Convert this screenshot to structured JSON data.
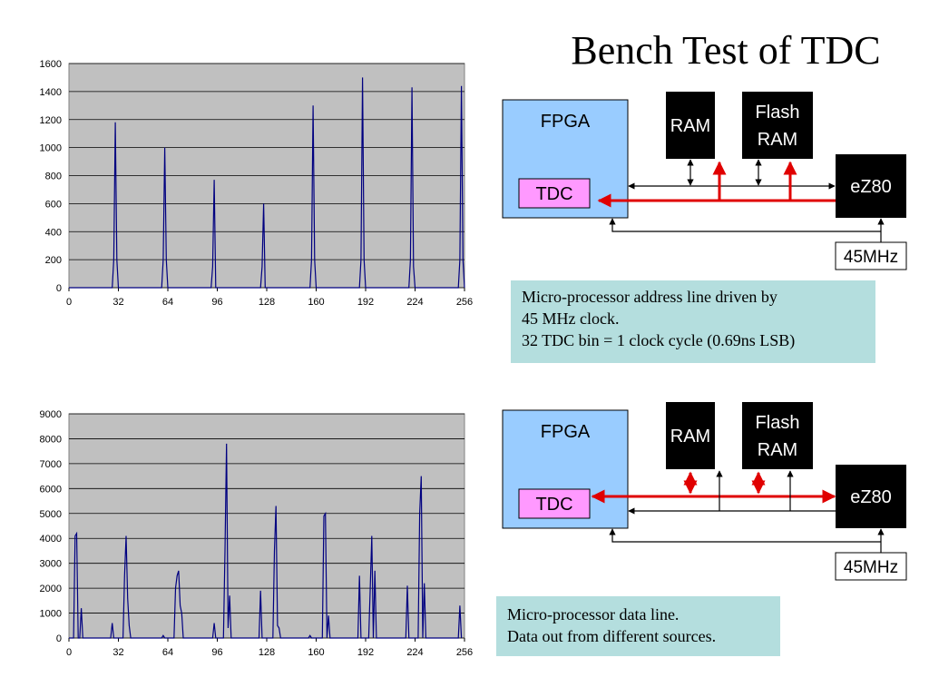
{
  "title": "Bench Test of TDC",
  "colors": {
    "plot_bg": "#c0c0c0",
    "line": "#000080",
    "fpga": "#99ccff",
    "tdc": "#ff99ff",
    "bus_red": "#e00000",
    "caption_bg": "#b4dede"
  },
  "chart_data": [
    {
      "type": "line",
      "xlim": [
        0,
        256
      ],
      "ylim": [
        0,
        1600
      ],
      "x_ticks": [
        "0",
        "32",
        "64",
        "96",
        "128",
        "160",
        "192",
        "224",
        "256"
      ],
      "y_ticks": [
        "0",
        "200",
        "400",
        "600",
        "800",
        "1000",
        "1200",
        "1400",
        "1600"
      ],
      "grid": true,
      "series": [
        {
          "points": [
            [
              0,
              0
            ],
            [
              28,
              0
            ],
            [
              29,
              200
            ],
            [
              30,
              1180
            ],
            [
              31,
              200
            ],
            [
              32,
              0
            ],
            [
              60,
              0
            ],
            [
              61,
              200
            ],
            [
              62,
              1000
            ],
            [
              63,
              200
            ],
            [
              64,
              0
            ],
            [
              92,
              0
            ],
            [
              93,
              150
            ],
            [
              94,
              770
            ],
            [
              95,
              0
            ],
            [
              124,
              0
            ],
            [
              125,
              150
            ],
            [
              126,
              600
            ],
            [
              127,
              0
            ],
            [
              156,
              0
            ],
            [
              157,
              200
            ],
            [
              158,
              1300
            ],
            [
              159,
              200
            ],
            [
              160,
              0
            ],
            [
              188,
              0
            ],
            [
              189,
              200
            ],
            [
              190,
              1500
            ],
            [
              191,
              200
            ],
            [
              192,
              0
            ],
            [
              220,
              0
            ],
            [
              221,
              200
            ],
            [
              222,
              1430
            ],
            [
              223,
              150
            ],
            [
              224,
              0
            ],
            [
              252,
              0
            ],
            [
              253,
              200
            ],
            [
              254,
              1440
            ],
            [
              255,
              200
            ],
            [
              256,
              0
            ]
          ]
        }
      ]
    },
    {
      "type": "line",
      "xlim": [
        0,
        256
      ],
      "ylim": [
        0,
        9000
      ],
      "x_ticks": [
        "0",
        "32",
        "64",
        "96",
        "128",
        "160",
        "192",
        "224",
        "256"
      ],
      "y_ticks": [
        "0",
        "1000",
        "2000",
        "3000",
        "4000",
        "5000",
        "6000",
        "7000",
        "8000",
        "9000"
      ],
      "grid": true,
      "series": [
        {
          "points": [
            [
              0,
              0
            ],
            [
              3,
              0
            ],
            [
              4,
              4100
            ],
            [
              5,
              4200
            ],
            [
              6,
              0
            ],
            [
              7,
              0
            ],
            [
              8,
              1200
            ],
            [
              9,
              0
            ],
            [
              27,
              0
            ],
            [
              28,
              600
            ],
            [
              29,
              0
            ],
            [
              35,
              0
            ],
            [
              36,
              2500
            ],
            [
              37,
              4100
            ],
            [
              38,
              1600
            ],
            [
              39,
              500
            ],
            [
              40,
              0
            ],
            [
              60,
              0
            ],
            [
              61,
              100
            ],
            [
              62,
              0
            ],
            [
              68,
              0
            ],
            [
              69,
              2000
            ],
            [
              70,
              2500
            ],
            [
              71,
              2700
            ],
            [
              72,
              1300
            ],
            [
              73,
              1000
            ],
            [
              74,
              0
            ],
            [
              93,
              0
            ],
            [
              94,
              600
            ],
            [
              95,
              0
            ],
            [
              100,
              0
            ],
            [
              101,
              3500
            ],
            [
              102,
              7800
            ],
            [
              103,
              400
            ],
            [
              104,
              1700
            ],
            [
              105,
              0
            ],
            [
              123,
              0
            ],
            [
              124,
              1900
            ],
            [
              125,
              0
            ],
            [
              132,
              0
            ],
            [
              133,
              3500
            ],
            [
              134,
              5300
            ],
            [
              135,
              500
            ],
            [
              136,
              400
            ],
            [
              137,
              0
            ],
            [
              155,
              0
            ],
            [
              156,
              100
            ],
            [
              157,
              0
            ],
            [
              164,
              0
            ],
            [
              165,
              4900
            ],
            [
              166,
              5000
            ],
            [
              167,
              0
            ],
            [
              168,
              900
            ],
            [
              169,
              0
            ],
            [
              187,
              0
            ],
            [
              188,
              2500
            ],
            [
              189,
              0
            ],
            [
              194,
              0
            ],
            [
              195,
              2000
            ],
            [
              196,
              4100
            ],
            [
              197,
              0
            ],
            [
              198,
              2700
            ],
            [
              199,
              0
            ],
            [
              218,
              0
            ],
            [
              219,
              2100
            ],
            [
              220,
              0
            ],
            [
              226,
              0
            ],
            [
              227,
              5000
            ],
            [
              228,
              6500
            ],
            [
              229,
              0
            ],
            [
              230,
              2200
            ],
            [
              231,
              0
            ],
            [
              252,
              0
            ],
            [
              253,
              1300
            ],
            [
              254,
              0
            ]
          ]
        }
      ]
    }
  ],
  "diagram1": {
    "fpga": "FPGA",
    "tdc": "TDC",
    "ram": "RAM",
    "flash_line1": "Flash",
    "flash_line2": "RAM",
    "ez80": "eZ80",
    "clock": "45MHz"
  },
  "diagram2": {
    "fpga": "FPGA",
    "tdc": "TDC",
    "ram": "RAM",
    "flash_line1": "Flash",
    "flash_line2": "RAM",
    "ez80": "eZ80",
    "clock": "45MHz"
  },
  "caption1": [
    "Micro-processor address line driven by",
    "45 MHz clock.",
    "32 TDC bin = 1 clock cycle (0.69ns LSB)"
  ],
  "caption2": [
    "Micro-processor data line.",
    "Data out from different sources."
  ]
}
